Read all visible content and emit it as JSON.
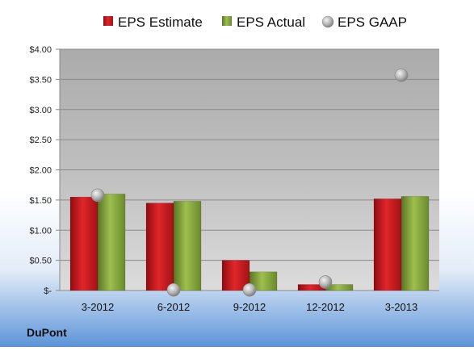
{
  "chart_data": {
    "type": "bar",
    "company": "DuPont",
    "categories": [
      "3-2012",
      "6-2012",
      "9-2012",
      "12-2012",
      "3-2013"
    ],
    "series": [
      {
        "name": "EPS Estimate",
        "type": "bar",
        "color": "#c0181b",
        "values": [
          1.55,
          1.45,
          0.5,
          0.1,
          1.52
        ]
      },
      {
        "name": "EPS Actual",
        "type": "bar",
        "color": "#7f9f36",
        "values": [
          1.6,
          1.48,
          0.31,
          0.1,
          1.56
        ]
      },
      {
        "name": "EPS GAAP",
        "type": "scatter",
        "color": "#a8a8a8",
        "values": [
          1.58,
          0.01,
          0.01,
          0.14,
          3.57
        ]
      }
    ],
    "yticks": [
      "$-",
      "$0.50",
      "$1.00",
      "$1.50",
      "$2.00",
      "$2.50",
      "$3.00",
      "$3.50",
      "$4.00"
    ],
    "ylim": [
      0,
      4
    ],
    "grid": true,
    "legend_position": "top"
  }
}
